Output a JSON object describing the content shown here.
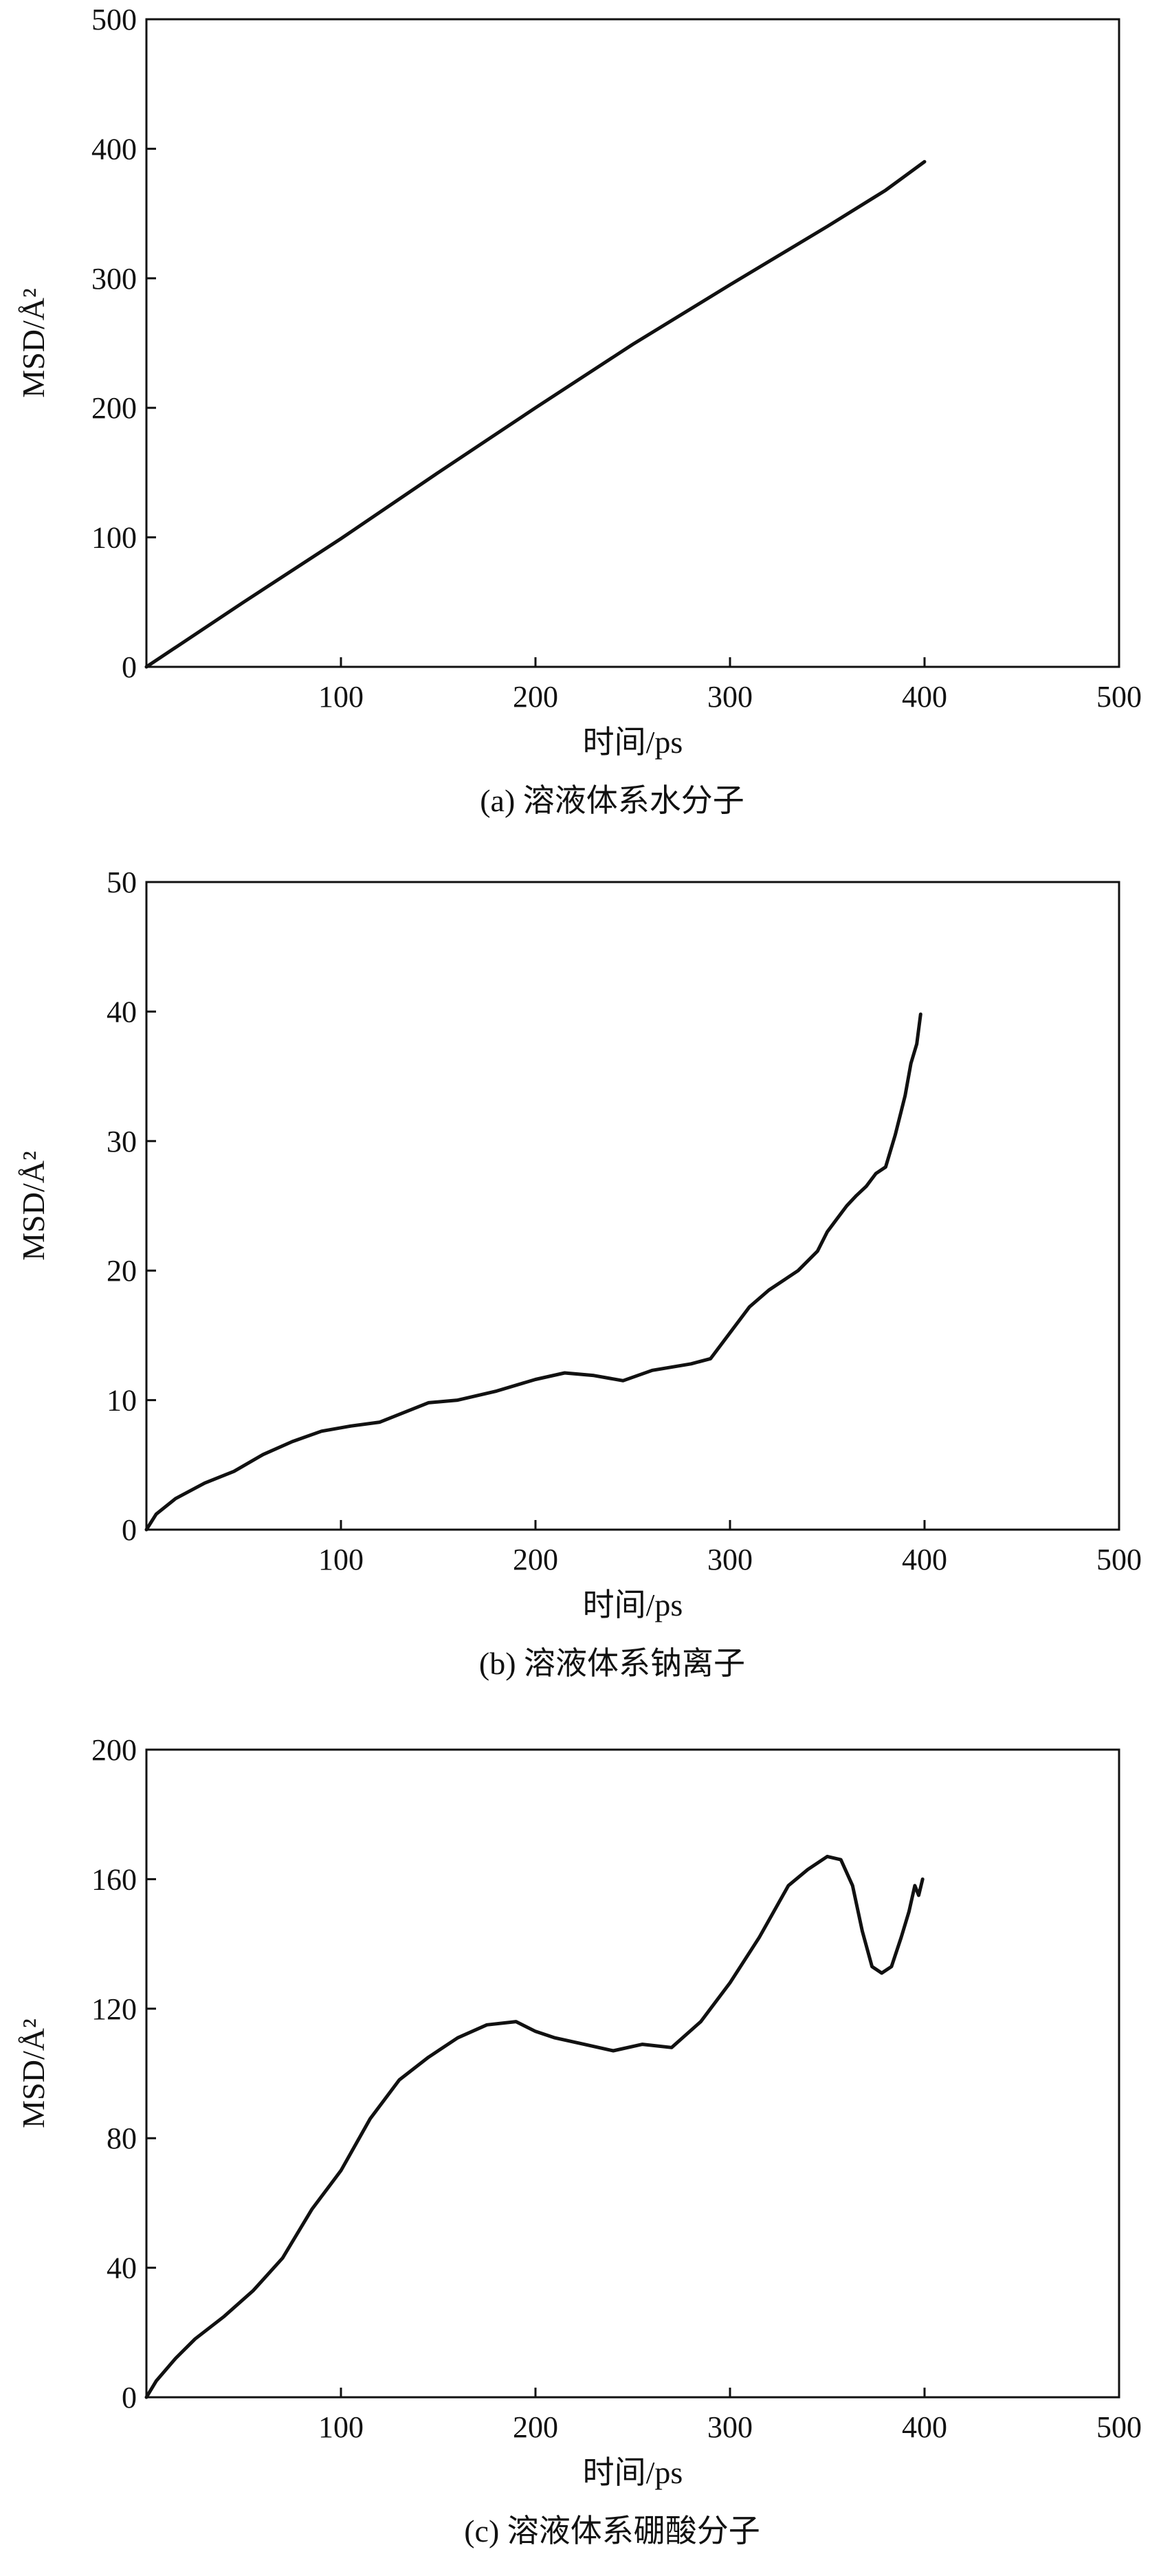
{
  "chart_data": [
    {
      "type": "line",
      "caption": "(a) 溶液体系水分子",
      "xlabel": "时间/ps",
      "ylabel": "MSD/Å²",
      "xlim": [
        0,
        500
      ],
      "ylim": [
        0,
        500
      ],
      "xticks": [
        100,
        200,
        300,
        400,
        500
      ],
      "yticks": [
        0,
        100,
        200,
        300,
        400,
        500
      ],
      "series": [
        {
          "x": [
            0,
            50,
            100,
            150,
            200,
            250,
            300,
            350,
            380,
            400
          ],
          "y": [
            0,
            50,
            99,
            150,
            200,
            249,
            295,
            340,
            368,
            390
          ]
        }
      ]
    },
    {
      "type": "line",
      "caption": "(b) 溶液体系钠离子",
      "xlabel": "时间/ps",
      "ylabel": "MSD/Å²",
      "xlim": [
        0,
        500
      ],
      "ylim": [
        0,
        50
      ],
      "xticks": [
        100,
        200,
        300,
        400,
        500
      ],
      "yticks": [
        0,
        10,
        20,
        30,
        40,
        50
      ],
      "series": [
        {
          "x": [
            0,
            5,
            15,
            30,
            45,
            60,
            75,
            90,
            105,
            120,
            135,
            145,
            160,
            180,
            200,
            215,
            230,
            245,
            260,
            280,
            290,
            300,
            310,
            320,
            335,
            345,
            350,
            355,
            360,
            365,
            370,
            375,
            380,
            385,
            390,
            393,
            396,
            398
          ],
          "y": [
            0,
            1.2,
            2.4,
            3.6,
            4.5,
            5.8,
            6.8,
            7.6,
            8.0,
            8.3,
            9.2,
            9.8,
            10.0,
            10.7,
            11.6,
            12.1,
            11.9,
            11.5,
            12.3,
            12.8,
            13.2,
            15.2,
            17.2,
            18.5,
            20.0,
            21.5,
            23.0,
            24.0,
            25.0,
            25.8,
            26.5,
            27.5,
            28.0,
            30.5,
            33.5,
            36.0,
            37.5,
            39.8
          ]
        }
      ]
    },
    {
      "type": "line",
      "caption": "(c) 溶液体系硼酸分子",
      "xlabel": "时间/ps",
      "ylabel": "MSD/Å²",
      "xlim": [
        0,
        500
      ],
      "ylim": [
        0,
        200
      ],
      "xticks": [
        100,
        200,
        300,
        400,
        500
      ],
      "yticks": [
        0,
        40,
        80,
        120,
        160,
        200
      ],
      "series": [
        {
          "x": [
            0,
            5,
            15,
            25,
            40,
            55,
            70,
            85,
            100,
            115,
            130,
            145,
            160,
            175,
            190,
            200,
            210,
            225,
            240,
            255,
            270,
            285,
            300,
            315,
            330,
            340,
            350,
            357,
            363,
            368,
            373,
            378,
            383,
            388,
            392,
            395,
            397,
            399
          ],
          "y": [
            0,
            5,
            12,
            18,
            25,
            33,
            43,
            58,
            70,
            86,
            98,
            105,
            111,
            115,
            116,
            113,
            111,
            109,
            107,
            109,
            108,
            116,
            128,
            142,
            158,
            163,
            167,
            166,
            158,
            144,
            133,
            131,
            133,
            142,
            150,
            158,
            155,
            160
          ]
        }
      ]
    }
  ]
}
